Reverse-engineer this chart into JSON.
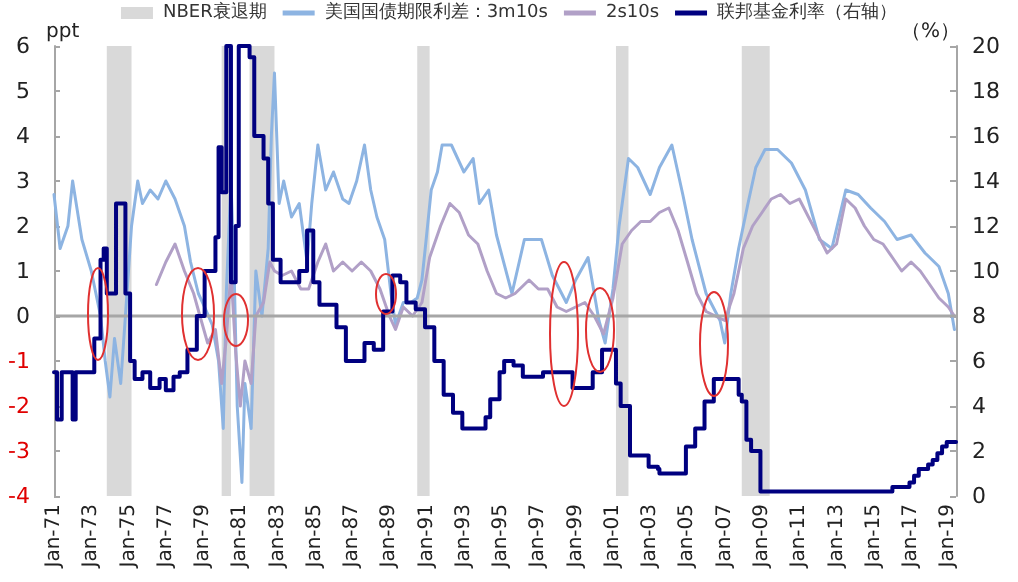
{
  "chart_data": {
    "type": "line",
    "ylabel": "ppt",
    "y2label": "（%）",
    "legend": "top",
    "marker": "none",
    "line_style": "solid",
    "grid": false,
    "xlim": [
      "1971-01",
      "2019-06"
    ],
    "xticks": [
      {
        "value": "1971-01",
        "label": "Jan-71"
      },
      {
        "value": "1973-01",
        "label": "Jan-73"
      },
      {
        "value": "1975-01",
        "label": "Jan-75"
      },
      {
        "value": "1977-01",
        "label": "Jan-77"
      },
      {
        "value": "1979-01",
        "label": "Jan-79"
      },
      {
        "value": "1981-01",
        "label": "Jan-81"
      },
      {
        "value": "1983-01",
        "label": "Jan-83"
      },
      {
        "value": "1985-01",
        "label": "Jan-85"
      },
      {
        "value": "1987-01",
        "label": "Jan-87"
      },
      {
        "value": "1989-01",
        "label": "Jan-89"
      },
      {
        "value": "1991-01",
        "label": "Jan-91"
      },
      {
        "value": "1993-01",
        "label": "Jan-93"
      },
      {
        "value": "1995-01",
        "label": "Jan-95"
      },
      {
        "value": "1997-01",
        "label": "Jan-97"
      },
      {
        "value": "1999-01",
        "label": "Jan-99"
      },
      {
        "value": "2001-01",
        "label": "Jan-01"
      },
      {
        "value": "2003-01",
        "label": "Jan-03"
      },
      {
        "value": "2005-01",
        "label": "Jan-05"
      },
      {
        "value": "2007-01",
        "label": "Jan-07"
      },
      {
        "value": "2009-01",
        "label": "Jan-09"
      },
      {
        "value": "2011-01",
        "label": "Jan-11"
      },
      {
        "value": "2013-01",
        "label": "Jan-13"
      },
      {
        "value": "2015-01",
        "label": "Jan-15"
      },
      {
        "value": "2017-01",
        "label": "Jan-17"
      },
      {
        "value": "2019-01",
        "label": "Jan-19"
      }
    ],
    "ylim": [
      -4,
      6
    ],
    "yticks": [
      -4,
      -3,
      -2,
      -1,
      0,
      1,
      2,
      3,
      4,
      5,
      6
    ],
    "y2lim": [
      0,
      20
    ],
    "y2ticks": [
      0,
      2,
      4,
      6,
      8,
      10,
      12,
      14,
      16,
      18,
      20
    ],
    "bands": [
      {
        "axis": "x",
        "from": "1973-11",
        "to": "1975-03",
        "label": "NBER衰退期",
        "color": "#d9d9d9"
      },
      {
        "axis": "x",
        "from": "1980-01",
        "to": "1980-07",
        "color": "#d9d9d9"
      },
      {
        "axis": "x",
        "from": "1981-07",
        "to": "1982-11",
        "color": "#d9d9d9"
      },
      {
        "axis": "x",
        "from": "1990-07",
        "to": "1991-03",
        "color": "#d9d9d9"
      },
      {
        "axis": "x",
        "from": "2001-03",
        "to": "2001-11",
        "color": "#d9d9d9"
      },
      {
        "axis": "x",
        "from": "2007-12",
        "to": "2009-06",
        "color": "#d9d9d9"
      }
    ],
    "ref_lines": [
      {
        "axis": "y",
        "value": 0,
        "color": "#a6a6a6"
      }
    ],
    "series": [
      {
        "name": "美国国债期限利差：3m10s",
        "color": "#8db4e2",
        "x": [
          "1971-01",
          "1971-05",
          "1971-10",
          "1972-01",
          "1972-07",
          "1973-01",
          "1973-07",
          "1973-10",
          "1974-01",
          "1974-04",
          "1974-08",
          "1974-11",
          "1975-03",
          "1975-07",
          "1975-10",
          "1976-03",
          "1976-08",
          "1977-01",
          "1977-07",
          "1978-01",
          "1978-05",
          "1978-10",
          "1979-02",
          "1979-07",
          "1979-11",
          "1980-02",
          "1980-04",
          "1980-07",
          "1980-09",
          "1980-11",
          "1981-02",
          "1981-04",
          "1981-08",
          "1981-11",
          "1982-03",
          "1982-07",
          "1982-09",
          "1982-11",
          "1983-02",
          "1983-05",
          "1983-10",
          "1984-03",
          "1984-08",
          "1984-11",
          "1985-03",
          "1985-08",
          "1986-01",
          "1986-07",
          "1986-11",
          "1987-04",
          "1987-09",
          "1988-01",
          "1988-05",
          "1988-10",
          "1989-02",
          "1989-05",
          "1989-10",
          "1990-03",
          "1990-07",
          "1990-10",
          "1991-01",
          "1991-04",
          "1991-08",
          "1991-11",
          "1992-05",
          "1993-01",
          "1993-07",
          "1993-11",
          "1994-05",
          "1994-10",
          "1995-08",
          "1996-04",
          "1997-03",
          "1997-10",
          "1998-07",
          "1999-01",
          "1999-09",
          "2000-04",
          "2000-08",
          "2001-01",
          "2001-05",
          "2001-11",
          "2002-05",
          "2003-01",
          "2003-07",
          "2004-03",
          "2004-10",
          "2005-04",
          "2006-01",
          "2006-10",
          "2007-01",
          "2007-05",
          "2007-10",
          "2008-04",
          "2008-09",
          "2009-03",
          "2009-11",
          "2010-08",
          "2011-05",
          "2012-02",
          "2012-10",
          "2013-07",
          "2014-03",
          "2014-11",
          "2015-08",
          "2016-04",
          "2017-01",
          "2017-10",
          "2018-07",
          "2019-01",
          "2019-05"
        ],
        "values": [
          2.7,
          1.5,
          2.0,
          3.0,
          1.7,
          1.0,
          0.0,
          -1.0,
          -1.8,
          -0.5,
          -1.5,
          0.0,
          2.0,
          3.0,
          2.5,
          2.8,
          2.6,
          3.0,
          2.6,
          2.0,
          1.2,
          0.5,
          0.2,
          -0.2,
          -1.0,
          -2.5,
          0.5,
          3.0,
          1.0,
          -2.0,
          -3.7,
          -1.5,
          -2.5,
          1.0,
          0.0,
          1.5,
          4.0,
          5.4,
          2.5,
          3.0,
          2.2,
          2.5,
          1.2,
          2.5,
          3.8,
          2.8,
          3.2,
          2.6,
          2.5,
          3.0,
          3.8,
          2.8,
          2.2,
          1.7,
          0.5,
          -0.2,
          0.3,
          0.3,
          0.4,
          0.8,
          1.8,
          2.8,
          3.2,
          3.8,
          3.8,
          3.2,
          3.5,
          2.5,
          2.8,
          1.8,
          0.5,
          1.7,
          1.7,
          0.9,
          0.3,
          0.8,
          1.3,
          -0.1,
          -0.6,
          0.6,
          2.0,
          3.5,
          3.3,
          2.7,
          3.3,
          3.8,
          2.7,
          1.7,
          0.5,
          -0.1,
          -0.6,
          0.5,
          1.5,
          2.5,
          3.3,
          3.7,
          3.7,
          3.4,
          2.8,
          1.7,
          1.5,
          2.8,
          2.7,
          2.4,
          2.1,
          1.7,
          1.8,
          1.4,
          1.1,
          0.5,
          -0.3
        ]
      },
      {
        "name": "2s10s",
        "color": "#b1a0c7",
        "x": [
          "1976-07",
          "1977-01",
          "1977-07",
          "1978-01",
          "1978-07",
          "1978-11",
          "1979-04",
          "1979-09",
          "1980-01",
          "1980-04",
          "1980-07",
          "1980-10",
          "1981-01",
          "1981-04",
          "1981-08",
          "1981-11",
          "1982-04",
          "1982-08",
          "1982-11",
          "1983-04",
          "1983-10",
          "1984-04",
          "1984-09",
          "1985-03",
          "1985-08",
          "1986-01",
          "1986-07",
          "1987-01",
          "1987-07",
          "1988-01",
          "1988-07",
          "1989-01",
          "1989-05",
          "1989-10",
          "1990-04",
          "1990-10",
          "1991-03",
          "1991-10",
          "1992-04",
          "1992-10",
          "1993-04",
          "1993-10",
          "1994-04",
          "1994-10",
          "1995-04",
          "1995-10",
          "1996-07",
          "1997-01",
          "1997-07",
          "1998-01",
          "1998-07",
          "1999-01",
          "1999-07",
          "2000-01",
          "2000-07",
          "2001-01",
          "2001-07",
          "2002-01",
          "2002-07",
          "2003-01",
          "2003-07",
          "2004-01",
          "2004-07",
          "2005-01",
          "2005-07",
          "2006-01",
          "2006-07",
          "2007-01",
          "2007-07",
          "2008-01",
          "2008-07",
          "2009-01",
          "2009-07",
          "2010-01",
          "2010-07",
          "2011-01",
          "2011-07",
          "2012-01",
          "2012-07",
          "2013-01",
          "2013-07",
          "2014-01",
          "2014-07",
          "2015-01",
          "2015-07",
          "2016-01",
          "2016-07",
          "2017-01",
          "2017-07",
          "2018-01",
          "2018-07",
          "2019-01",
          "2019-05"
        ],
        "values": [
          0.7,
          1.2,
          1.6,
          1.0,
          0.5,
          0.0,
          -0.6,
          -0.3,
          -1.5,
          -0.5,
          1.0,
          -0.8,
          -2.0,
          -1.0,
          -1.5,
          0.0,
          0.3,
          1.2,
          1.0,
          0.9,
          1.0,
          0.6,
          0.6,
          1.2,
          1.6,
          1.0,
          1.2,
          1.0,
          1.2,
          1.0,
          0.6,
          0.0,
          -0.3,
          0.2,
          0.0,
          0.3,
          1.3,
          2.0,
          2.5,
          2.3,
          1.8,
          1.6,
          1.0,
          0.5,
          0.4,
          0.5,
          0.8,
          0.6,
          0.6,
          0.2,
          0.1,
          0.2,
          0.3,
          0.0,
          -0.4,
          0.4,
          1.6,
          1.9,
          2.1,
          2.1,
          2.3,
          2.4,
          1.9,
          1.2,
          0.5,
          0.1,
          0.0,
          -0.1,
          0.5,
          1.5,
          2.0,
          2.3,
          2.6,
          2.7,
          2.5,
          2.6,
          2.2,
          1.8,
          1.4,
          1.6,
          2.6,
          2.4,
          2.0,
          1.7,
          1.6,
          1.3,
          1.0,
          1.2,
          1.0,
          0.7,
          0.4,
          0.2,
          0.0
        ]
      },
      {
        "name": "联邦基金利率（右轴）",
        "color": "#000080",
        "type": "step",
        "axis": "y2",
        "x": [
          "1971-01",
          "1971-03",
          "1971-06",
          "1971-10",
          "1972-01",
          "1972-03",
          "1972-10",
          "1973-03",
          "1973-07",
          "1973-09",
          "1973-11",
          "1974-02",
          "1974-05",
          "1974-08",
          "1974-11",
          "1975-02",
          "1975-05",
          "1975-10",
          "1976-03",
          "1976-09",
          "1977-01",
          "1977-06",
          "1977-10",
          "1978-03",
          "1978-09",
          "1979-02",
          "1979-06",
          "1979-09",
          "1979-11",
          "1980-01",
          "1980-04",
          "1980-07",
          "1980-10",
          "1980-12",
          "1981-05",
          "1981-07",
          "1981-10",
          "1981-12",
          "1982-04",
          "1982-07",
          "1982-10",
          "1983-03",
          "1983-09",
          "1984-03",
          "1984-08",
          "1984-12",
          "1985-04",
          "1985-09",
          "1986-03",
          "1986-09",
          "1987-03",
          "1987-09",
          "1988-03",
          "1988-09",
          "1989-03",
          "1989-08",
          "1989-12",
          "1990-06",
          "1990-12",
          "1991-06",
          "1991-12",
          "1992-06",
          "1992-12",
          "1993-06",
          "1993-12",
          "1994-03",
          "1994-06",
          "1994-12",
          "1995-03",
          "1995-09",
          "1996-03",
          "1996-12",
          "1997-04",
          "1998-08",
          "1998-11",
          "1999-06",
          "1999-12",
          "2000-06",
          "2000-12",
          "2001-03",
          "2001-06",
          "2001-12",
          "2002-10",
          "2002-12",
          "2003-06",
          "2003-07",
          "2004-06",
          "2004-12",
          "2005-06",
          "2005-12",
          "2006-06",
          "2007-08",
          "2007-10",
          "2007-12",
          "2008-03",
          "2008-06",
          "2008-09",
          "2008-12",
          "2015-12",
          "2016-01",
          "2016-12",
          "2017-03",
          "2017-06",
          "2017-12",
          "2018-03",
          "2018-06",
          "2018-09",
          "2018-12",
          "2019-06"
        ],
        "values": [
          5.5,
          3.4,
          5.5,
          5.5,
          3.4,
          5.5,
          5.5,
          7,
          10.5,
          11,
          9,
          9,
          13,
          13,
          9,
          6,
          5.2,
          5.5,
          4.8,
          5.2,
          4.7,
          5.3,
          5.5,
          6.5,
          8,
          10,
          10,
          11.5,
          15.5,
          13.5,
          20,
          9.5,
          12,
          20,
          20,
          19.5,
          16,
          16,
          15,
          13,
          10.5,
          9.5,
          9.5,
          10,
          11.8,
          9.5,
          8.5,
          8.5,
          7.5,
          6,
          6,
          6.8,
          6.5,
          8.2,
          9.8,
          9.5,
          8.6,
          8.3,
          7.5,
          6,
          4.5,
          3.7,
          3,
          3,
          3,
          3.5,
          4.3,
          5.5,
          6,
          5.8,
          5.3,
          5.3,
          5.5,
          5.5,
          4.8,
          4.8,
          5.5,
          6.5,
          6.5,
          5,
          4,
          1.8,
          1.8,
          1.3,
          1.2,
          1,
          1,
          2.2,
          3,
          4.2,
          5.2,
          5.2,
          4.5,
          4.2,
          2.5,
          2,
          2,
          0.2,
          0.2,
          0.4,
          0.6,
          0.9,
          1.2,
          1.4,
          1.6,
          1.9,
          2.2,
          2.4,
          2.4
        ]
      }
    ]
  }
}
